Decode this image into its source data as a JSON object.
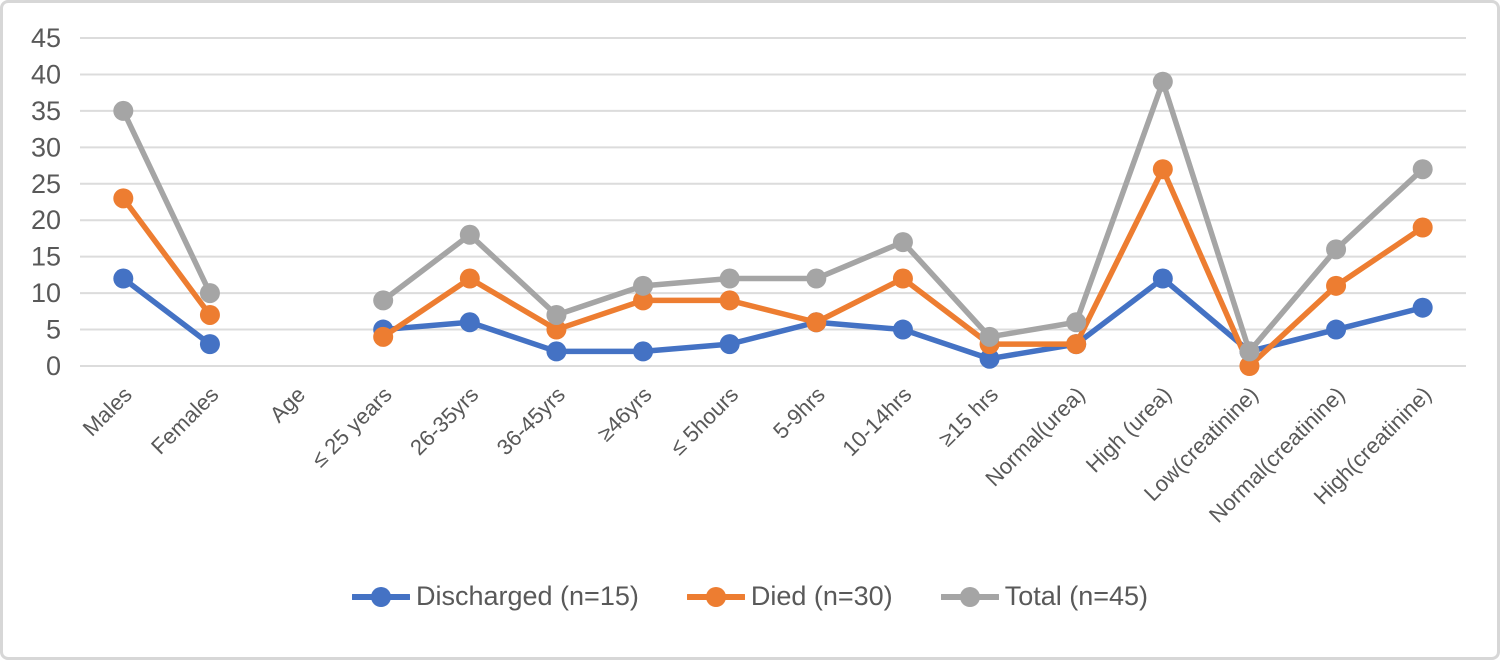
{
  "chart_data": {
    "type": "line",
    "title": "",
    "xlabel": "",
    "ylabel": "",
    "categories": [
      "Males",
      "Females",
      "Age",
      "≤ 25 years",
      "26-35yrs",
      "36-45yrs",
      "≥46yrs",
      "≤ 5hours",
      "5-9hrs",
      "10-14hrs",
      "≥15 hrs",
      "Normal(urea)",
      "High (urea)",
      "Low(creatinine)",
      "Normal(creatinine)",
      "High(creatinine)"
    ],
    "series": [
      {
        "name": "Discharged (n=15)",
        "color": "#4472C4",
        "values": [
          12,
          3,
          null,
          5,
          6,
          2,
          2,
          3,
          6,
          5,
          1,
          3,
          12,
          2,
          5,
          8
        ]
      },
      {
        "name": "Died (n=30)",
        "color": "#ED7D31",
        "values": [
          23,
          7,
          null,
          4,
          12,
          5,
          9,
          9,
          6,
          12,
          3,
          3,
          27,
          0,
          11,
          19
        ]
      },
      {
        "name": "Total (n=45)",
        "color": "#A5A5A5",
        "values": [
          35,
          10,
          null,
          9,
          18,
          7,
          11,
          12,
          12,
          17,
          4,
          6,
          39,
          2,
          16,
          27
        ]
      }
    ],
    "y_axis": {
      "min": 0,
      "max": 45,
      "step": 5,
      "tick_labels": [
        "0",
        "5",
        "10",
        "15",
        "20",
        "25",
        "30",
        "35",
        "40",
        "45"
      ]
    },
    "grid": true,
    "legend_position": "bottom",
    "marker": "circle",
    "line_style": "solid-with-markers"
  },
  "style": {
    "gridline_color": "#DCDCDC",
    "axis_text_color": "#595959",
    "frame_border_color": "#D7D7D7",
    "background_color": "#FFFFFF"
  }
}
